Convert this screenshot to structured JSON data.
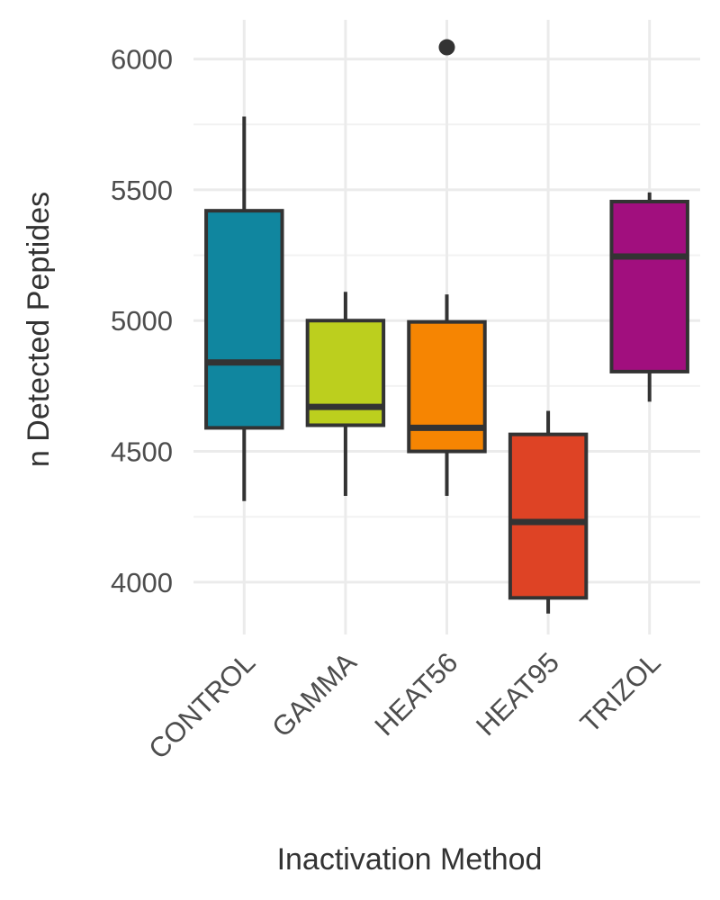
{
  "chart_data": {
    "type": "box",
    "title": "",
    "xlabel": "Inactivation Method",
    "ylabel": "n Detected Peptides",
    "ylim": [
      3800,
      6150
    ],
    "yticks": [
      4000,
      4500,
      5000,
      5500,
      6000
    ],
    "yminor": [
      4250,
      4750,
      5250,
      5750
    ],
    "grid": true,
    "legend": "none",
    "categories": [
      "CONTROL",
      "GAMMA",
      "HEAT56",
      "HEAT95",
      "TRIZOL"
    ],
    "boxes": [
      {
        "category": "CONTROL",
        "min": 4310,
        "q1": 4590,
        "median": 4840,
        "q3": 5420,
        "max": 5780,
        "outliers": [],
        "color": "#10869f"
      },
      {
        "category": "GAMMA",
        "min": 4330,
        "q1": 4600,
        "median": 4670,
        "q3": 5000,
        "max": 5110,
        "outliers": [],
        "color": "#bccf1e"
      },
      {
        "category": "HEAT56",
        "min": 4330,
        "q1": 4500,
        "median": 4590,
        "q3": 4995,
        "max": 5100,
        "outliers": [
          6045
        ],
        "color": "#f68502"
      },
      {
        "category": "HEAT95",
        "min": 3880,
        "q1": 3940,
        "median": 4230,
        "q3": 4565,
        "max": 4655,
        "outliers": [],
        "color": "#de4325"
      },
      {
        "category": "TRIZOL",
        "min": 4690,
        "q1": 4805,
        "median": 5245,
        "q3": 5455,
        "max": 5490,
        "outliers": [],
        "color": "#a10f7e"
      }
    ]
  }
}
